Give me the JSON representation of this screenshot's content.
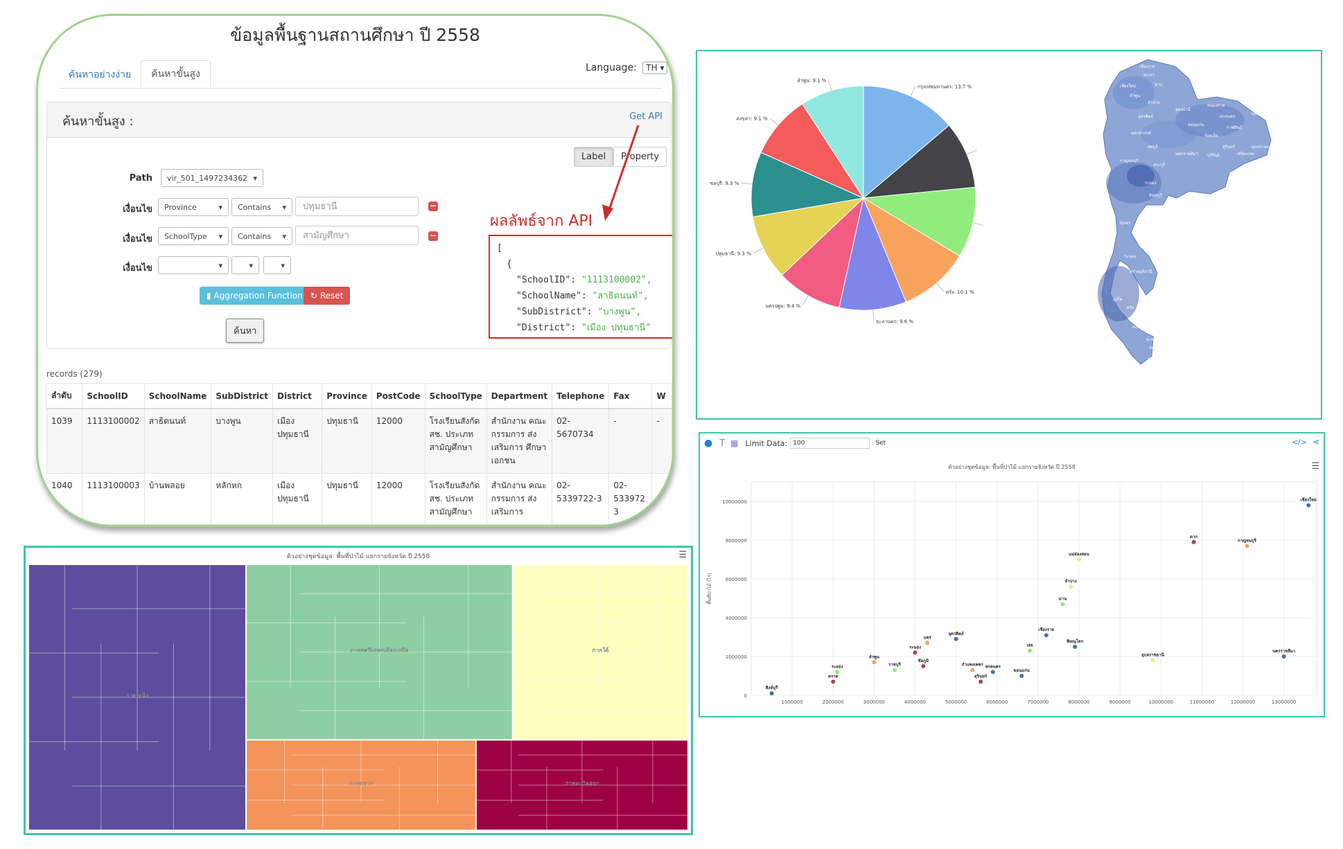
{
  "search_panel": {
    "title": "ข้อมูลพื้นฐานสถานศึกษา ปี 2558",
    "tabs": [
      "ค้นหาอย่างง่าย",
      "ค้นหาขั้นสูง"
    ],
    "language_label": "Language:",
    "language_value": "TH",
    "box_heading": "ค้นหาขั้นสูง :",
    "get_api": "Get API",
    "mode_buttons": [
      "Label",
      "Property"
    ],
    "path_label": "Path",
    "path_value": "vir_501_1497234362",
    "condition_label": "เงื่อนไข",
    "conditions": [
      {
        "field": "Province",
        "op": "Contains",
        "value": "ปทุมธานี"
      },
      {
        "field": "SchoolType",
        "op": "Contains",
        "value": "สามัญศึกษา"
      },
      {
        "field": "",
        "op": "",
        "value": ""
      }
    ],
    "agg_button": "Aggregation Function",
    "reset_button": "Reset",
    "search_button": "ค้นหา",
    "api_result_label": "ผลลัพธ์จาก API",
    "api_json": {
      "open_bracket": "[",
      "open_brace": "{",
      "lines": [
        {
          "key": "\"SchoolID\"",
          "val": "\"1113100002\","
        },
        {
          "key": "\"SchoolName\"",
          "val": "\"สาธิตนนท์\","
        },
        {
          "key": "\"SubDistrict\"",
          "val": "\"บางพูน\","
        },
        {
          "key": "\"District\"",
          "val": "\"เมือง ปทุมธานี\""
        }
      ]
    },
    "records_label": "records (279)",
    "table_headers": [
      "ลำดับ",
      "SchoolID",
      "SchoolName",
      "SubDistrict",
      "District",
      "Province",
      "PostCode",
      "SchoolType",
      "Department",
      "Telephone",
      "Fax",
      "W"
    ],
    "table_rows": [
      [
        "1039",
        "1113100002",
        "สาธิตนนท์",
        "บางพูน",
        "เมือง ปทุมธานี",
        "ปทุมธานี",
        "12000",
        "โรงเรียนสังกัด สช. ประเภท สามัญศึกษา",
        "สำนักงาน คณะกรรมการ ส่งเสริมการ ศึกษาเอกชน",
        "02- 5670734",
        "-",
        "-"
      ],
      [
        "1040",
        "1113100003",
        "บ้านพลอย",
        "หลักหก",
        "เมือง ปทุมธานี",
        "ปทุมธานี",
        "12000",
        "โรงเรียนสังกัด สช. ประเภท สามัญศึกษา",
        "สำนักงาน คณะกรรมการ ส่งเสริมการ",
        "02- 5339722-3",
        "02- 533972 3",
        ""
      ]
    ]
  },
  "pie_map_panel": {
    "pie": {
      "slices": [
        {
          "label": "กรุงเทพมหานคร: 13.7 %",
          "value": 13.7,
          "color": "#7cb5ec"
        },
        {
          "label": "",
          "value": 9.6,
          "color": "#434348"
        },
        {
          "label": "",
          "value": 10.1,
          "color": "#90ed7d"
        },
        {
          "label": "ตรัง: 10.1 %",
          "value": 10.1,
          "color": "#f7a35c"
        },
        {
          "label": "ยะลานคร: 9.6 %",
          "value": 9.6,
          "color": "#8085e9"
        },
        {
          "label": "นครปฐม: 9.4 %",
          "value": 9.4,
          "color": "#f15c80"
        },
        {
          "label": "ปทุมธานี: 9.3 %",
          "value": 9.3,
          "color": "#e4d354"
        },
        {
          "label": "ชลบุรี: 9.3 %",
          "value": 9.3,
          "color": "#2b908f"
        },
        {
          "label": "สงขลา: 9.1 %",
          "value": 9.1,
          "color": "#f45b5b"
        },
        {
          "label": "ลำพูน: 9.1 %",
          "value": 9.1,
          "color": "#91e8e1"
        }
      ]
    },
    "map_labels": [
      "เชียงราย",
      "พะเยา",
      "เชียงใหม่",
      "น่าน",
      "ลำพูน",
      "ลำปาง",
      "อุตรดิตถ์",
      "หนองคาย",
      "อุดรธานี",
      "สกลนคร",
      "นครพนม",
      "ขอนแก่น",
      "กาฬสินธุ์",
      "นครสวรรค์",
      "ร้อยเอ็ด",
      "อุบลราชธานี",
      "สุรินทร์",
      "ศรีสะเกษ",
      "นครราชสีมา",
      "บุรีรัมย์",
      "ลพบุรี",
      "กาญจนบุรี",
      "สระบุรี",
      "ระยอง",
      "จันทบุรี",
      "ชุมพร",
      "ระนอง",
      "สุราษฎร์ธานี",
      "ภูเก็ต",
      "ตรัง",
      "สงขลา",
      "ยะลา",
      "ปัตตานี",
      "นราธิวาส"
    ]
  },
  "treemap_panel": {
    "title": "ตัวอย่างชุดข้อมูล: พื้นที่ป่าไม้ แยกรายจังหวัด ปี 2558",
    "menu_icon": "hamburger-icon",
    "regions": [
      {
        "name": "ภาคเหนือ",
        "value": 33,
        "color": "#5c4d9e"
      },
      {
        "name": "ภาคตะวันออกเฉียงเหนือ",
        "value": 32,
        "color": "#8dcfa3"
      },
      {
        "name": "ภาคใต้",
        "value": 14,
        "color": "#ffffbf"
      },
      {
        "name": "ภาคกลาง",
        "value": 12,
        "color": "#f4945a"
      },
      {
        "name": "ภาคตะวันออก",
        "value": 9,
        "color": "#9e0142"
      }
    ]
  },
  "scatter_panel": {
    "toolbar": {
      "limit_label": "Limit Data:",
      "limit_value": "100",
      "set_button": "Set"
    },
    "title": "ตัวอย่างชุดข้อมูล: พื้นที่ป่าไม้ แยกรายจังหวัด ปี 2558",
    "y_axis_label": "พื้นที่ป่าไม้ (ไร่)"
  },
  "chart_data": [
    {
      "type": "pie",
      "title": "",
      "categories": [
        "กรุงเทพมหานคร",
        "",
        "",
        "ตรัง",
        "ยะลานคร",
        "นครปฐม",
        "ปทุมธานี",
        "ชลบุรี",
        "สงขลา",
        "ลำพูน"
      ],
      "values": [
        13.7,
        9.6,
        10.1,
        10.1,
        9.6,
        9.4,
        9.3,
        9.3,
        9.1,
        9.1
      ]
    },
    {
      "type": "heatmap",
      "title": "ตัวอย่างชุดข้อมูล: พื้นที่ป่าไม้ แยกรายจังหวัด ปี 2558",
      "categories": [
        "ภาคเหนือ",
        "ภาคตะวันออกเฉียงเหนือ",
        "ภาคใต้",
        "ภาคกลาง",
        "ภาคตะวันออก"
      ],
      "values": [
        33,
        32,
        14,
        12,
        9
      ]
    },
    {
      "type": "scatter",
      "title": "ตัวอย่างชุดข้อมูล: พื้นที่ป่าไม้ แยกรายจังหวัด ปี 2558",
      "xlabel": "",
      "ylabel": "พื้นที่ป่าไม้ (ไร่)",
      "xlim": [
        0,
        13800000
      ],
      "ylim": [
        0,
        11000000
      ],
      "x_ticks": [
        "1000000",
        "2000000",
        "3000000",
        "4000000",
        "5000000",
        "6000000",
        "7000000",
        "8000000",
        "9000000",
        "10000000",
        "11000000",
        "12000000",
        "13000000"
      ],
      "y_ticks": [
        "0",
        "2000000",
        "4000000",
        "6000000",
        "8000000",
        "10000000"
      ],
      "points": [
        {
          "label": "เชียงใหม่",
          "x": 13600000,
          "y": 9800000,
          "color": "#4572a7"
        },
        {
          "label": "ตาก",
          "x": 10800000,
          "y": 7900000,
          "color": "#aa4643"
        },
        {
          "label": "กาญจนบุรี",
          "x": 12100000,
          "y": 7700000,
          "color": "#f7a35c"
        },
        {
          "label": "แม่ฮ่องสอน",
          "x": 8000000,
          "y": 7000000,
          "color": "#eeee88"
        },
        {
          "label": "ลำปาง",
          "x": 7800000,
          "y": 5600000,
          "color": "#eeee88"
        },
        {
          "label": "น่าน",
          "x": 7600000,
          "y": 4700000,
          "color": "#90ed7d"
        },
        {
          "label": "นครราชสีมา",
          "x": 13000000,
          "y": 2000000,
          "color": "#4572a7"
        },
        {
          "label": "อุบลราชธานี",
          "x": 9800000,
          "y": 1800000,
          "color": "#eeee88"
        },
        {
          "label": "เชียงราย",
          "x": 7200000,
          "y": 3100000,
          "color": "#4572a7"
        },
        {
          "label": "พิษณุโลก",
          "x": 7900000,
          "y": 2500000,
          "color": "#4572a7"
        },
        {
          "label": "เลย",
          "x": 6800000,
          "y": 2300000,
          "color": "#90ed7d"
        },
        {
          "label": "อุตรดิตถ์",
          "x": 5000000,
          "y": 2900000,
          "color": "#4572a7"
        },
        {
          "label": "แพร่",
          "x": 4300000,
          "y": 2700000,
          "color": "#f7a35c"
        },
        {
          "label": "ระนอง",
          "x": 4000000,
          "y": 2200000,
          "color": "#aa4643"
        },
        {
          "label": "สกลนคร",
          "x": 5900000,
          "y": 1200000,
          "color": "#4572a7"
        },
        {
          "label": "กำแพงเพชร",
          "x": 5400000,
          "y": 1300000,
          "color": "#f7a35c"
        },
        {
          "label": "ขอนแก่น",
          "x": 6600000,
          "y": 1000000,
          "color": "#4572a7"
        },
        {
          "label": "ชัยภูมิ",
          "x": 4200000,
          "y": 1500000,
          "color": "#aa4643"
        },
        {
          "label": "ราชบุรี",
          "x": 3500000,
          "y": 1300000,
          "color": "#90ed7d"
        },
        {
          "label": "สุรินทร์",
          "x": 5600000,
          "y": 700000,
          "color": "#aa4643"
        },
        {
          "label": "ลำพูน",
          "x": 3000000,
          "y": 1700000,
          "color": "#f7a35c"
        },
        {
          "label": "ระยอง",
          "x": 2100000,
          "y": 1200000,
          "color": "#90ed7d"
        },
        {
          "label": "ตราด",
          "x": 2000000,
          "y": 700000,
          "color": "#aa4643"
        },
        {
          "label": "สิงห์บุรี",
          "x": 500000,
          "y": 100000,
          "color": "#4572a7"
        }
      ]
    }
  ]
}
